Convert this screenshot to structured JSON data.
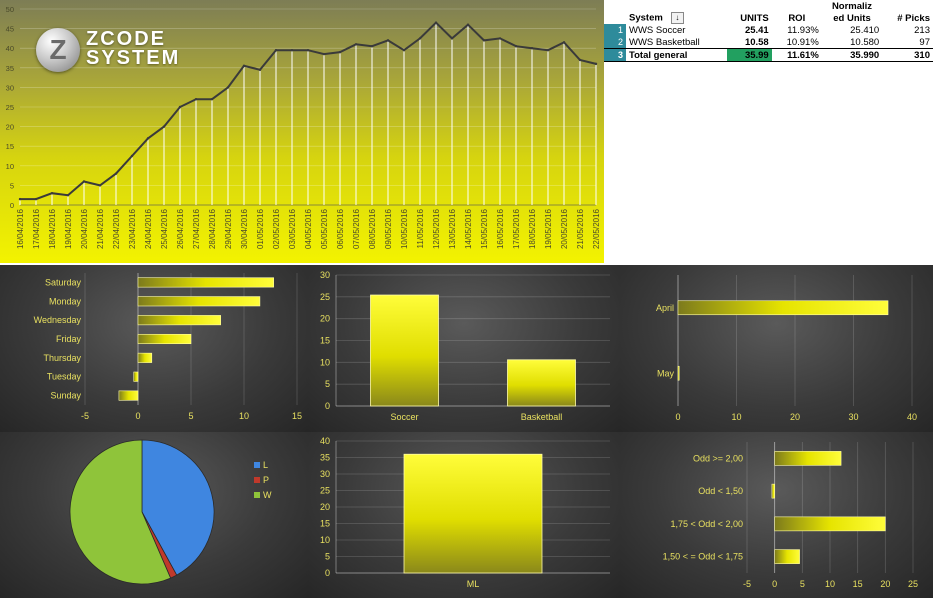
{
  "logo": {
    "line1": "ZCODE",
    "line2": "SYSTEM",
    "glyph": "Z"
  },
  "table": {
    "headers": {
      "system": "System",
      "filter_icon": "↓",
      "units": "UNITS",
      "roi": "ROI",
      "normalized_line1": "Normaliz",
      "normalized_line2": "ed Units",
      "picks": "# Picks"
    },
    "rows": [
      {
        "n": "1",
        "system": "WWS Soccer",
        "units": "25.41",
        "roi": "11.93%",
        "normalized": "25.410",
        "picks": "213"
      },
      {
        "n": "2",
        "system": "WWS Basketball",
        "units": "10.58",
        "roi": "10.91%",
        "normalized": "10.580",
        "picks": "97"
      }
    ],
    "total": {
      "n": "3",
      "system": "Total general",
      "units": "35.99",
      "roi": "11.61%",
      "normalized": "35.990",
      "picks": "310"
    },
    "colors": {
      "row_number_bg": "#2e8b9b",
      "total_units_bg": "#22a060"
    }
  },
  "chart_data": [
    {
      "type": "line",
      "x": [
        "16/04/2016",
        "17/04/2016",
        "18/04/2016",
        "19/04/2016",
        "20/04/2016",
        "21/04/2016",
        "22/04/2016",
        "23/04/2016",
        "24/04/2016",
        "25/04/2016",
        "26/04/2016",
        "27/04/2016",
        "28/04/2016",
        "29/04/2016",
        "30/04/2016",
        "01/05/2016",
        "02/05/2016",
        "03/05/2016",
        "04/05/2016",
        "05/05/2016",
        "06/05/2016",
        "07/05/2016",
        "08/05/2016",
        "09/05/2016",
        "10/05/2016",
        "11/05/2016",
        "12/05/2016",
        "13/05/2016",
        "14/05/2016",
        "15/05/2016",
        "16/05/2016",
        "17/05/2016",
        "18/05/2016",
        "19/05/2016",
        "20/05/2016",
        "21/05/2016",
        "22/05/2016"
      ],
      "values": [
        1.5,
        1.5,
        3,
        2.5,
        6,
        5,
        8,
        12.5,
        17,
        20,
        25,
        27,
        27,
        30,
        35.5,
        34.5,
        39.5,
        39.5,
        39.5,
        38.5,
        39,
        41,
        40.5,
        42,
        39.5,
        42.5,
        46.5,
        42.5,
        46,
        42,
        42.5,
        40.5,
        40,
        39.5,
        41.5,
        37,
        36
      ],
      "ylim": [
        0,
        50
      ],
      "yticks": [
        0,
        5,
        10,
        15,
        20,
        25,
        30,
        35,
        40,
        45,
        50
      ],
      "color": "#3a3a3a",
      "drop_line_color": "#ffffff"
    },
    {
      "type": "bar",
      "orientation": "horizontal",
      "categories": [
        "Saturday",
        "Monday",
        "Wednesday",
        "Friday",
        "Thursday",
        "Tuesday",
        "Sunday"
      ],
      "values": [
        12.8,
        11.5,
        7.8,
        5,
        1.3,
        -0.4,
        -1.8
      ],
      "xlim": [
        -5,
        15
      ],
      "xticks": [
        -5,
        0,
        5,
        10,
        15
      ]
    },
    {
      "type": "bar",
      "categories": [
        "Soccer",
        "Basketball"
      ],
      "values": [
        25.41,
        10.58
      ],
      "ylim": [
        0,
        30
      ],
      "yticks": [
        0,
        5,
        10,
        15,
        20,
        25,
        30
      ]
    },
    {
      "type": "bar",
      "orientation": "horizontal",
      "categories": [
        "April",
        "May"
      ],
      "values": [
        35.9,
        0.1
      ],
      "xlim": [
        0,
        40
      ],
      "xticks": [
        0,
        10,
        20,
        30,
        40
      ]
    },
    {
      "type": "pie",
      "legend": [
        "L",
        "P",
        "W"
      ],
      "values": [
        42,
        1.5,
        56.5
      ],
      "colors": [
        "#3f86e0",
        "#c0392b",
        "#8fc43a"
      ],
      "legend_position": "right"
    },
    {
      "type": "bar",
      "categories": [
        "ML"
      ],
      "values": [
        35.99
      ],
      "ylim": [
        0,
        40
      ],
      "yticks": [
        0,
        5,
        10,
        15,
        20,
        25,
        30,
        35,
        40
      ]
    },
    {
      "type": "bar",
      "orientation": "horizontal",
      "categories": [
        "Odd >= 2,00",
        "Odd < 1,50",
        "1,75 < Odd < 2,00",
        "1,50 < = Odd < 1,75"
      ],
      "values": [
        12,
        -0.5,
        20,
        4.5
      ],
      "xlim": [
        -5,
        25
      ],
      "xticks": [
        -5,
        0,
        5,
        10,
        15,
        20,
        25
      ]
    }
  ]
}
